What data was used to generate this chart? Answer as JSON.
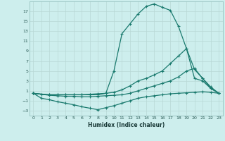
{
  "xlabel": "Humidex (Indice chaleur)",
  "bg_color": "#cdeeed",
  "grid_color": "#b8d8d5",
  "line_color": "#1a7a6e",
  "xlim": [
    -0.5,
    23.5
  ],
  "ylim": [
    -4,
    19
  ],
  "xticks": [
    0,
    1,
    2,
    3,
    4,
    5,
    6,
    7,
    8,
    9,
    10,
    11,
    12,
    13,
    14,
    15,
    16,
    17,
    18,
    19,
    20,
    21,
    22,
    23
  ],
  "yticks": [
    -3,
    -1,
    1,
    3,
    5,
    7,
    9,
    11,
    13,
    15,
    17
  ],
  "line1_x": [
    0,
    1,
    2,
    3,
    4,
    5,
    6,
    7,
    8,
    9,
    10,
    11,
    12,
    13,
    14,
    15,
    16,
    17,
    18,
    19,
    20,
    21,
    22,
    23
  ],
  "line1_y": [
    0.5,
    0.3,
    0.2,
    0.2,
    0.2,
    0.2,
    0.2,
    0.2,
    0.2,
    0.5,
    5,
    12.5,
    14.5,
    16.5,
    18,
    18.5,
    17.8,
    17.2,
    14,
    9.5,
    3.5,
    3,
    1.5,
    0.5
  ],
  "line2_x": [
    0,
    2,
    3,
    4,
    5,
    6,
    7,
    8,
    9,
    10,
    11,
    12,
    13,
    14,
    15,
    16,
    17,
    18,
    19,
    20,
    21,
    22,
    23
  ],
  "line2_y": [
    0.5,
    0.2,
    0.2,
    0.2,
    0.2,
    0.2,
    0.3,
    0.4,
    0.5,
    0.7,
    1.2,
    2.0,
    3.0,
    3.5,
    4.2,
    5.0,
    6.5,
    8.0,
    9.5,
    5.3,
    3.5,
    1.5,
    0.5
  ],
  "line3_x": [
    0,
    1,
    2,
    3,
    4,
    5,
    6,
    7,
    8,
    9,
    10,
    11,
    12,
    13,
    14,
    15,
    16,
    17,
    18,
    19,
    20,
    21,
    22,
    23
  ],
  "line3_y": [
    0.5,
    -0.5,
    -0.8,
    -1.2,
    -1.5,
    -1.8,
    -2.2,
    -2.5,
    -2.8,
    -2.4,
    -2.0,
    -1.5,
    -1.0,
    -0.5,
    -0.2,
    0.0,
    0.2,
    0.4,
    0.5,
    0.6,
    0.7,
    0.8,
    0.7,
    0.5
  ],
  "line4_x": [
    0,
    2,
    3,
    4,
    5,
    6,
    7,
    8,
    9,
    10,
    11,
    12,
    13,
    14,
    15,
    16,
    17,
    18,
    19,
    20,
    21,
    22,
    23
  ],
  "line4_y": [
    0.5,
    0.1,
    0.0,
    -0.1,
    -0.1,
    -0.2,
    -0.2,
    -0.1,
    0.0,
    0.1,
    0.2,
    0.5,
    1.0,
    1.5,
    2.0,
    2.5,
    3.0,
    3.8,
    5.0,
    5.5,
    3.5,
    1.8,
    0.5
  ]
}
